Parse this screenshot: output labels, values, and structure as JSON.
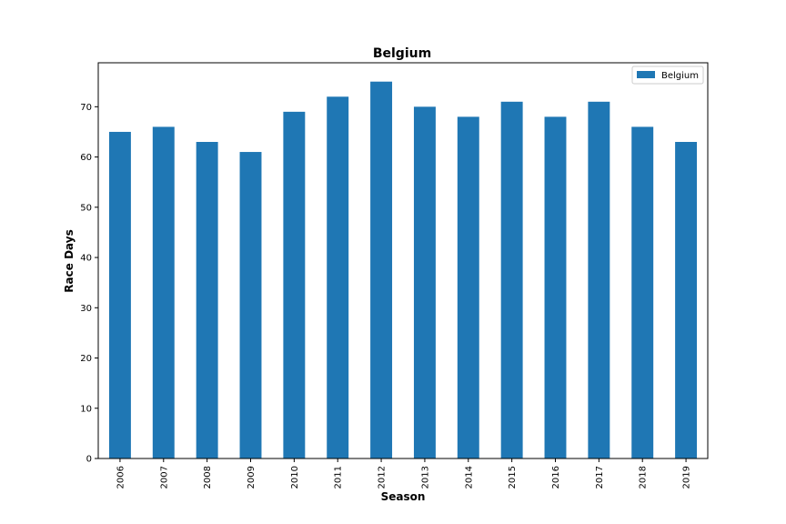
{
  "chart_data": {
    "type": "bar",
    "title": "Belgium",
    "xlabel": "Season",
    "ylabel": "Race Days",
    "categories": [
      "2006",
      "2007",
      "2008",
      "2009",
      "2010",
      "2011",
      "2012",
      "2013",
      "2014",
      "2015",
      "2016",
      "2017",
      "2018",
      "2019"
    ],
    "series": [
      {
        "name": "Belgium",
        "values": [
          65,
          66,
          63,
          61,
          69,
          72,
          75,
          70,
          68,
          71,
          68,
          71,
          66,
          63
        ]
      }
    ],
    "ylim": [
      0,
      78.75
    ],
    "yticks": [
      0,
      10,
      20,
      30,
      40,
      50,
      60,
      70
    ],
    "legend_position": "top-right",
    "grid": false,
    "colors": {
      "bar": "#1f77b4"
    }
  }
}
